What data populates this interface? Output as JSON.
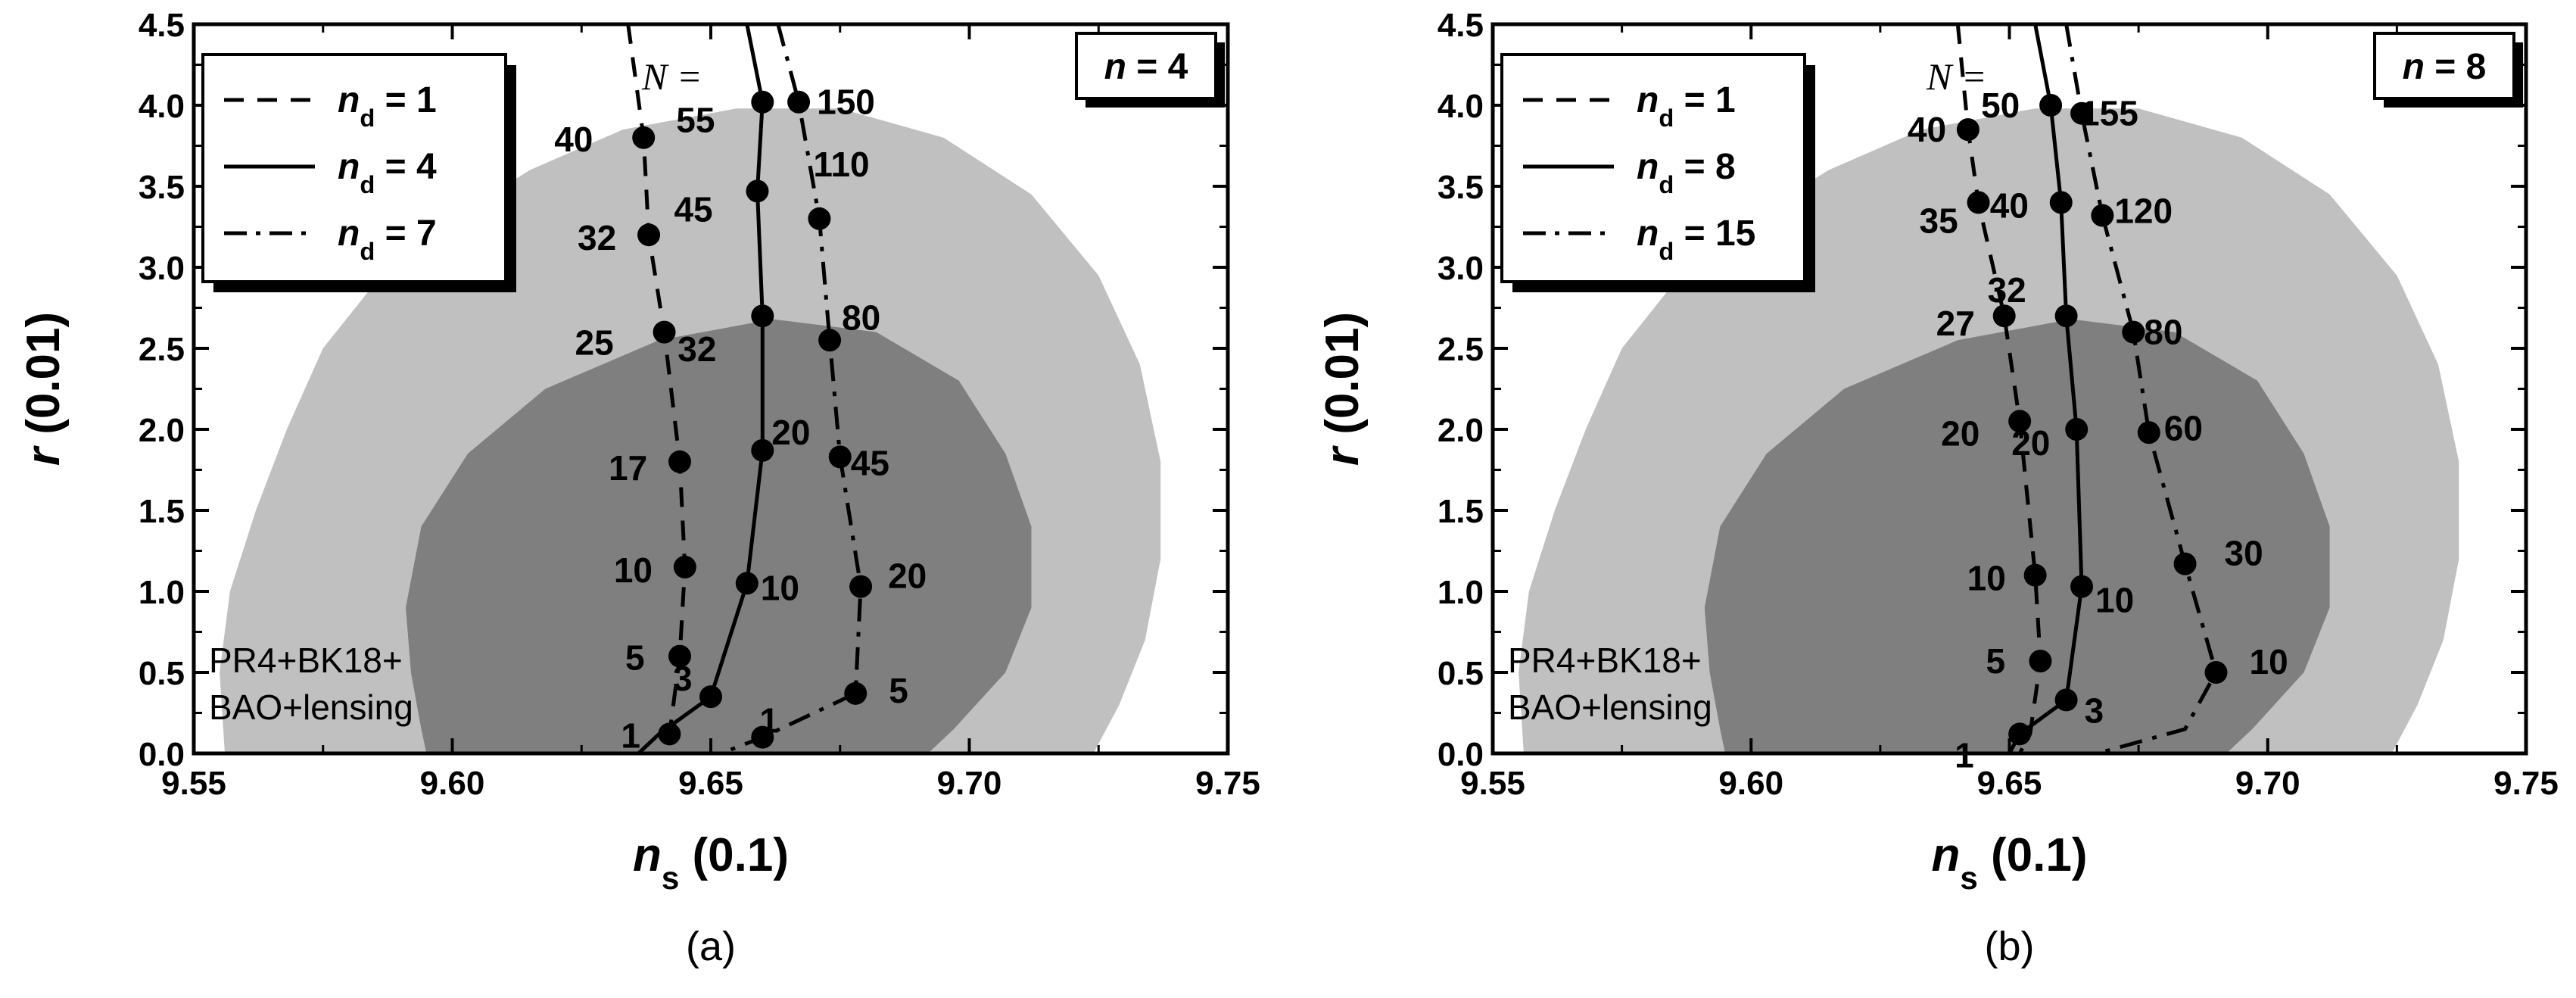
{
  "chart_data": [
    {
      "type": "line",
      "panel_label": "(a)",
      "box_label": "n = 4",
      "xlabel": "n_s (0.1)",
      "ylabel": "r (0.01)",
      "xlim": [
        9.55,
        9.75
      ],
      "ylim": [
        0.0,
        4.5
      ],
      "xticks": [
        "9.55",
        "9.60",
        "9.65",
        "9.70",
        "9.75"
      ],
      "yticks": [
        "0.0",
        "0.5",
        "1.0",
        "1.5",
        "2.0",
        "2.5",
        "3.0",
        "3.5",
        "4.0",
        "4.5"
      ],
      "dataset_label": [
        "PR4+BK18+",
        "BAO+lensing"
      ],
      "n_header": "N =",
      "legend": [
        "n_d = 1",
        "n_d = 4",
        "n_d = 7"
      ],
      "contours": {
        "outer": [
          [
            9.556,
            0.0
          ],
          [
            9.555,
            0.5
          ],
          [
            9.557,
            1.0
          ],
          [
            9.562,
            1.5
          ],
          [
            9.568,
            2.0
          ],
          [
            9.575,
            2.5
          ],
          [
            9.585,
            2.9
          ],
          [
            9.6,
            3.3
          ],
          [
            9.615,
            3.6
          ],
          [
            9.633,
            3.85
          ],
          [
            9.655,
            3.98
          ],
          [
            9.675,
            3.98
          ],
          [
            9.695,
            3.8
          ],
          [
            9.712,
            3.45
          ],
          [
            9.725,
            2.95
          ],
          [
            9.733,
            2.4
          ],
          [
            9.737,
            1.8
          ],
          [
            9.737,
            1.2
          ],
          [
            9.734,
            0.7
          ],
          [
            9.729,
            0.3
          ],
          [
            9.724,
            0.0
          ]
        ],
        "inner": [
          [
            9.595,
            0.0
          ],
          [
            9.594,
            0.15
          ],
          [
            9.592,
            0.5
          ],
          [
            9.591,
            0.9
          ],
          [
            9.594,
            1.4
          ],
          [
            9.603,
            1.85
          ],
          [
            9.618,
            2.25
          ],
          [
            9.64,
            2.55
          ],
          [
            9.662,
            2.68
          ],
          [
            9.682,
            2.6
          ],
          [
            9.698,
            2.3
          ],
          [
            9.707,
            1.85
          ],
          [
            9.712,
            1.4
          ],
          [
            9.712,
            0.9
          ],
          [
            9.707,
            0.5
          ],
          [
            9.697,
            0.15
          ],
          [
            9.692,
            0.0
          ]
        ]
      },
      "series": [
        {
          "name": "n_d = 1",
          "style": "dashed",
          "x": [
            9.634,
            9.637,
            9.638,
            9.641,
            9.644,
            9.645,
            9.644,
            9.642,
            9.641
          ],
          "y": [
            4.5,
            3.8,
            3.2,
            2.6,
            1.8,
            1.15,
            0.6,
            0.12,
            0.0
          ],
          "labels": [
            "",
            "40",
            "32",
            "25",
            "17",
            "10",
            "5",
            "1",
            ""
          ]
        },
        {
          "name": "n_d = 4",
          "style": "solid",
          "x": [
            9.657,
            9.66,
            9.659,
            9.66,
            9.66,
            9.657,
            9.65,
            9.64,
            9.636
          ],
          "y": [
            4.5,
            4.02,
            3.47,
            2.7,
            1.87,
            1.05,
            0.35,
            0.12,
            0.0
          ],
          "labels": [
            "",
            "55",
            "45",
            "32",
            "20",
            "10",
            "3",
            "",
            ""
          ]
        },
        {
          "name": "n_d = 7",
          "style": "dashdot",
          "x": [
            9.663,
            9.667,
            9.671,
            9.673,
            9.675,
            9.679,
            9.678,
            9.66,
            9.652
          ],
          "y": [
            4.5,
            4.02,
            3.3,
            2.55,
            1.83,
            1.03,
            0.37,
            0.1,
            0.0
          ],
          "labels": [
            "",
            "150",
            "110",
            "80",
            "45",
            "20",
            "5",
            "1",
            ""
          ]
        }
      ]
    },
    {
      "type": "line",
      "panel_label": "(b)",
      "box_label": "n = 8",
      "xlabel": "n_s (0.1)",
      "ylabel": "r (0.01)",
      "xlim": [
        9.55,
        9.75
      ],
      "ylim": [
        0.0,
        4.5
      ],
      "xticks": [
        "9.55",
        "9.60",
        "9.65",
        "9.70",
        "9.75"
      ],
      "yticks": [
        "0.0",
        "0.5",
        "1.0",
        "1.5",
        "2.0",
        "2.5",
        "3.0",
        "3.5",
        "4.0",
        "4.5"
      ],
      "dataset_label": [
        "PR4+BK18+",
        "BAO+lensing"
      ],
      "n_header": "N =",
      "legend": [
        "n_d = 1",
        "n_d = 8",
        "n_d = 15"
      ],
      "contours": {
        "outer": [
          [
            9.556,
            0.0
          ],
          [
            9.555,
            0.5
          ],
          [
            9.557,
            1.0
          ],
          [
            9.562,
            1.5
          ],
          [
            9.568,
            2.0
          ],
          [
            9.575,
            2.5
          ],
          [
            9.585,
            2.9
          ],
          [
            9.6,
            3.3
          ],
          [
            9.615,
            3.6
          ],
          [
            9.633,
            3.85
          ],
          [
            9.655,
            3.98
          ],
          [
            9.675,
            3.98
          ],
          [
            9.695,
            3.8
          ],
          [
            9.712,
            3.45
          ],
          [
            9.725,
            2.95
          ],
          [
            9.733,
            2.4
          ],
          [
            9.737,
            1.8
          ],
          [
            9.737,
            1.2
          ],
          [
            9.734,
            0.7
          ],
          [
            9.729,
            0.3
          ],
          [
            9.724,
            0.0
          ]
        ],
        "inner": [
          [
            9.595,
            0.0
          ],
          [
            9.594,
            0.15
          ],
          [
            9.592,
            0.5
          ],
          [
            9.591,
            0.9
          ],
          [
            9.594,
            1.4
          ],
          [
            9.603,
            1.85
          ],
          [
            9.618,
            2.25
          ],
          [
            9.64,
            2.55
          ],
          [
            9.662,
            2.68
          ],
          [
            9.682,
            2.6
          ],
          [
            9.698,
            2.3
          ],
          [
            9.707,
            1.85
          ],
          [
            9.712,
            1.4
          ],
          [
            9.712,
            0.9
          ],
          [
            9.707,
            0.5
          ],
          [
            9.697,
            0.15
          ],
          [
            9.692,
            0.0
          ]
        ]
      },
      "series": [
        {
          "name": "n_d = 1",
          "style": "dashed",
          "x": [
            9.64,
            9.642,
            9.644,
            9.649,
            9.652,
            9.655,
            9.656,
            9.654,
            9.652
          ],
          "y": [
            4.5,
            3.85,
            3.4,
            2.7,
            2.05,
            1.1,
            0.57,
            0.12,
            0.0
          ],
          "labels": [
            "",
            "40",
            "35",
            "27",
            "20",
            "10",
            "5",
            "",
            ""
          ]
        },
        {
          "name": "n_d = 8",
          "style": "solid",
          "x": [
            9.655,
            9.658,
            9.66,
            9.661,
            9.663,
            9.664,
            9.661,
            9.652,
            9.65
          ],
          "y": [
            4.5,
            4.0,
            3.4,
            2.7,
            2.0,
            1.03,
            0.33,
            0.12,
            0.0
          ],
          "labels": [
            "",
            "50",
            "40",
            "32",
            "20",
            "10",
            "3",
            "1",
            ""
          ]
        },
        {
          "name": "n_d = 15",
          "style": "dashdot",
          "x": [
            9.661,
            9.664,
            9.668,
            9.674,
            9.677,
            9.684,
            9.69,
            9.684,
            9.667
          ],
          "y": [
            4.5,
            3.95,
            3.32,
            2.6,
            1.98,
            1.17,
            0.5,
            0.15,
            0.0
          ],
          "labels": [
            "",
            "155",
            "120",
            "80",
            "60",
            "30",
            "10",
            "",
            ""
          ]
        }
      ]
    }
  ]
}
